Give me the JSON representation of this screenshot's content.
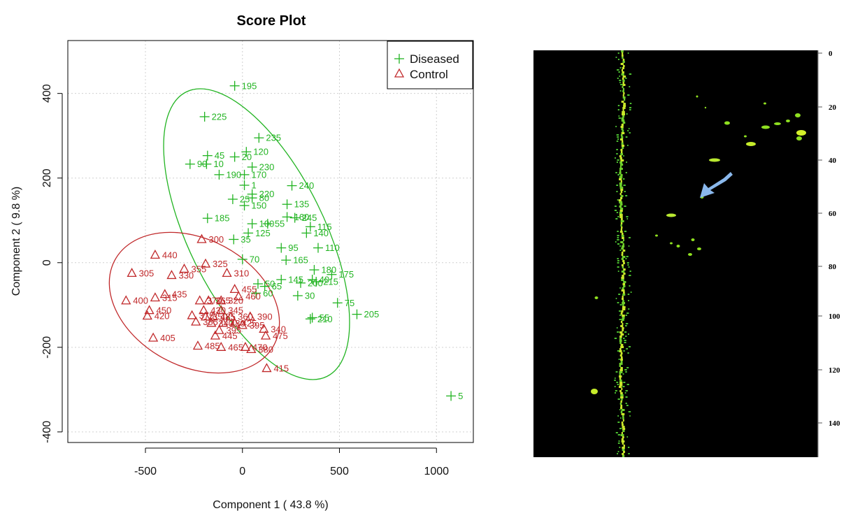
{
  "chart_data": {
    "type": "scatter",
    "title": "Score Plot",
    "xlabel": "Component 1 ( 43.8 %)",
    "ylabel": "Component 2 ( 9.8 %)",
    "xlim": [
      -900,
      1190
    ],
    "ylim": [
      -425,
      525
    ],
    "x_ticks": [
      -500,
      0,
      500,
      1000
    ],
    "y_ticks": [
      -400,
      -200,
      0,
      200,
      400
    ],
    "x_tick_labels": [
      "-500",
      "0",
      "500",
      "1000"
    ],
    "y_tick_labels": [
      "-400",
      "-200",
      "0",
      "200",
      "400"
    ],
    "grid": true,
    "legend_position": "top-right",
    "colors": {
      "Diseased": "#22b422",
      "Control": "#c0282a"
    },
    "series": [
      {
        "name": "Diseased",
        "marker": "plus",
        "points": [
          {
            "x": -40,
            "y": 418,
            "label": "195"
          },
          {
            "x": -195,
            "y": 345,
            "label": "225"
          },
          {
            "x": 85,
            "y": 295,
            "label": "235"
          },
          {
            "x": 20,
            "y": 262,
            "label": "120"
          },
          {
            "x": -180,
            "y": 253,
            "label": "45"
          },
          {
            "x": -40,
            "y": 250,
            "label": "20"
          },
          {
            "x": -270,
            "y": 233,
            "label": "90"
          },
          {
            "x": -185,
            "y": 233,
            "label": "10"
          },
          {
            "x": 50,
            "y": 226,
            "label": "230"
          },
          {
            "x": -120,
            "y": 208,
            "label": "190"
          },
          {
            "x": 10,
            "y": 208,
            "label": "170"
          },
          {
            "x": 255,
            "y": 182,
            "label": "240"
          },
          {
            "x": 10,
            "y": 183,
            "label": "1"
          },
          {
            "x": 50,
            "y": 162,
            "label": "220"
          },
          {
            "x": -50,
            "y": 150,
            "label": "25"
          },
          {
            "x": 50,
            "y": 153,
            "label": "80"
          },
          {
            "x": 10,
            "y": 135,
            "label": "150"
          },
          {
            "x": 230,
            "y": 138,
            "label": "135"
          },
          {
            "x": -180,
            "y": 105,
            "label": "185"
          },
          {
            "x": 230,
            "y": 108,
            "label": "160"
          },
          {
            "x": 270,
            "y": 106,
            "label": "245"
          },
          {
            "x": 50,
            "y": 92,
            "label": "100"
          },
          {
            "x": 130,
            "y": 92,
            "label": "55"
          },
          {
            "x": 350,
            "y": 85,
            "label": "115"
          },
          {
            "x": 30,
            "y": 70,
            "label": "125"
          },
          {
            "x": 330,
            "y": 70,
            "label": "140"
          },
          {
            "x": -45,
            "y": 55,
            "label": "35"
          },
          {
            "x": 200,
            "y": 35,
            "label": "95"
          },
          {
            "x": 390,
            "y": 35,
            "label": "110"
          },
          {
            "x": 0,
            "y": 8,
            "label": "70"
          },
          {
            "x": 225,
            "y": 6,
            "label": "165"
          },
          {
            "x": 370,
            "y": -17,
            "label": "180"
          },
          {
            "x": 460,
            "y": -28,
            "label": "175"
          },
          {
            "x": 200,
            "y": -40,
            "label": "145"
          },
          {
            "x": 360,
            "y": -40,
            "label": "40"
          },
          {
            "x": 80,
            "y": -50,
            "label": "50"
          },
          {
            "x": 300,
            "y": -48,
            "label": "200"
          },
          {
            "x": 380,
            "y": -45,
            "label": "215"
          },
          {
            "x": 115,
            "y": -56,
            "label": "65"
          },
          {
            "x": 70,
            "y": -72,
            "label": "60"
          },
          {
            "x": 285,
            "y": -78,
            "label": "30"
          },
          {
            "x": 490,
            "y": -95,
            "label": "75"
          },
          {
            "x": 590,
            "y": -122,
            "label": "205"
          },
          {
            "x": 360,
            "y": -130,
            "label": "55"
          },
          {
            "x": 350,
            "y": -133,
            "label": "210"
          },
          {
            "x": 1075,
            "y": -315,
            "label": "5"
          }
        ]
      },
      {
        "name": "Control",
        "marker": "triangle",
        "points": [
          {
            "x": -210,
            "y": 55,
            "label": "300"
          },
          {
            "x": -450,
            "y": 18,
            "label": "440"
          },
          {
            "x": -190,
            "y": -3,
            "label": "325"
          },
          {
            "x": -300,
            "y": -15,
            "label": "355"
          },
          {
            "x": -570,
            "y": -25,
            "label": "305"
          },
          {
            "x": -365,
            "y": -30,
            "label": "330"
          },
          {
            "x": -80,
            "y": -25,
            "label": "310"
          },
          {
            "x": -40,
            "y": -63,
            "label": "455"
          },
          {
            "x": -400,
            "y": -75,
            "label": "435"
          },
          {
            "x": -450,
            "y": -83,
            "label": "315"
          },
          {
            "x": -20,
            "y": -80,
            "label": "460"
          },
          {
            "x": -600,
            "y": -90,
            "label": "400"
          },
          {
            "x": -220,
            "y": -90,
            "label": "370"
          },
          {
            "x": -175,
            "y": -90,
            "label": "365"
          },
          {
            "x": -110,
            "y": -90,
            "label": "320"
          },
          {
            "x": -480,
            "y": -113,
            "label": "450"
          },
          {
            "x": -200,
            "y": -113,
            "label": "430"
          },
          {
            "x": -110,
            "y": -113,
            "label": "345"
          },
          {
            "x": -490,
            "y": -126,
            "label": "420"
          },
          {
            "x": -260,
            "y": -125,
            "label": "375"
          },
          {
            "x": -190,
            "y": -128,
            "label": "350"
          },
          {
            "x": -150,
            "y": -128,
            "label": "485"
          },
          {
            "x": -60,
            "y": -128,
            "label": "360"
          },
          {
            "x": 40,
            "y": -128,
            "label": "390"
          },
          {
            "x": -240,
            "y": -140,
            "label": "385"
          },
          {
            "x": -160,
            "y": -143,
            "label": "340"
          },
          {
            "x": -100,
            "y": -143,
            "label": "480"
          },
          {
            "x": -40,
            "y": -143,
            "label": "425"
          },
          {
            "x": 0,
            "y": -148,
            "label": "395"
          },
          {
            "x": 110,
            "y": -157,
            "label": "340"
          },
          {
            "x": -120,
            "y": -160,
            "label": "395"
          },
          {
            "x": -460,
            "y": -178,
            "label": "405"
          },
          {
            "x": -140,
            "y": -173,
            "label": "445"
          },
          {
            "x": 120,
            "y": -173,
            "label": "475"
          },
          {
            "x": -230,
            "y": -197,
            "label": "485"
          },
          {
            "x": -110,
            "y": -200,
            "label": "465"
          },
          {
            "x": 15,
            "y": -200,
            "label": "470"
          },
          {
            "x": 45,
            "y": -205,
            "label": "380"
          },
          {
            "x": 125,
            "y": -250,
            "label": "415"
          }
        ]
      }
    ]
  }
}
